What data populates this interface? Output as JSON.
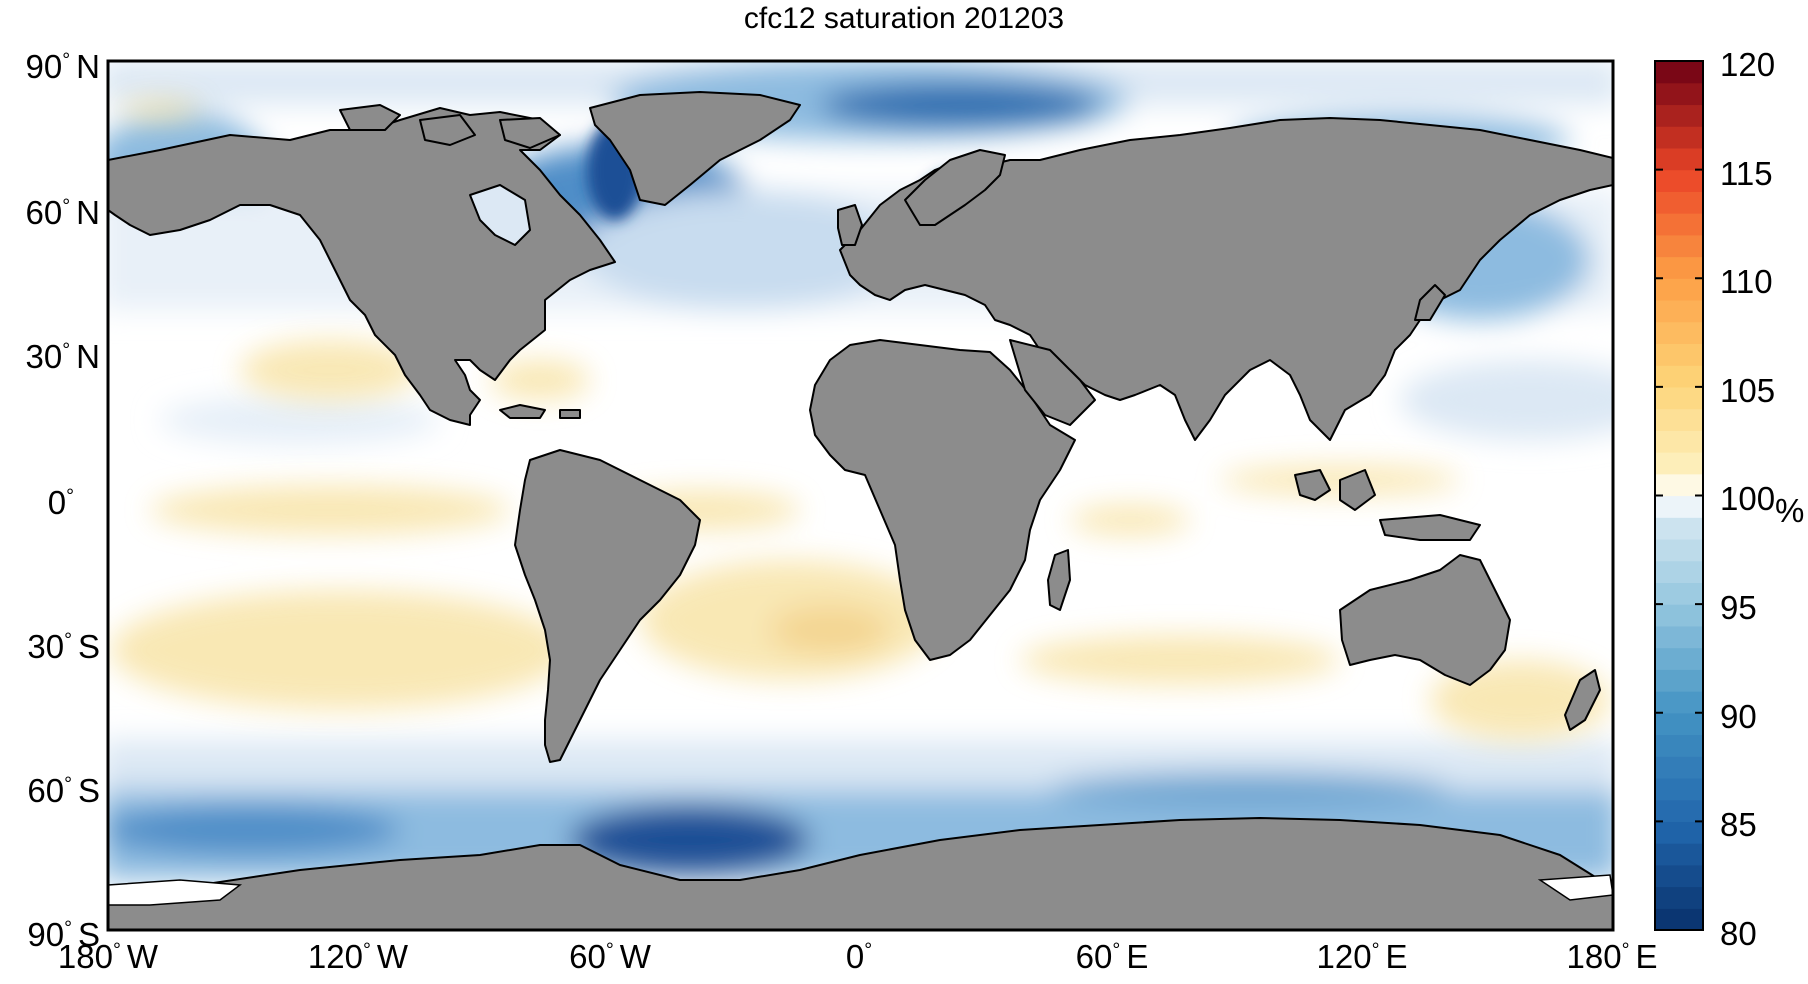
{
  "title": "cfc12 saturation 201203",
  "lat_labels": [
    {
      "deg": "90",
      "hemi": "N"
    },
    {
      "deg": "60",
      "hemi": "N"
    },
    {
      "deg": "30",
      "hemi": "N"
    },
    {
      "deg": "0",
      "hemi": ""
    },
    {
      "deg": "30",
      "hemi": "S"
    },
    {
      "deg": "60",
      "hemi": "S"
    },
    {
      "deg": "90",
      "hemi": "S"
    }
  ],
  "lon_labels": [
    {
      "deg": "180",
      "hemi": "W"
    },
    {
      "deg": "120",
      "hemi": "W"
    },
    {
      "deg": "60",
      "hemi": "W"
    },
    {
      "deg": "0",
      "hemi": ""
    },
    {
      "deg": "60",
      "hemi": "E"
    },
    {
      "deg": "120",
      "hemi": "E"
    },
    {
      "deg": "180",
      "hemi": "E"
    }
  ],
  "colorbar": {
    "unit": "%",
    "min": 80,
    "max": 120,
    "ticks": [
      "120",
      "115",
      "110",
      "105",
      "100",
      "95",
      "90",
      "85",
      "80"
    ]
  },
  "colors": {
    "land": "#8c8c8c",
    "coast": "#000000",
    "ocean_neutral": "#ffffff",
    "ocean_supersat": "#f8e6b0",
    "ocean_undersat_light": "#dce8f4",
    "ocean_undersat_mid": "#6fa6d2",
    "ocean_undersat_deep": "#1d4f96"
  }
}
